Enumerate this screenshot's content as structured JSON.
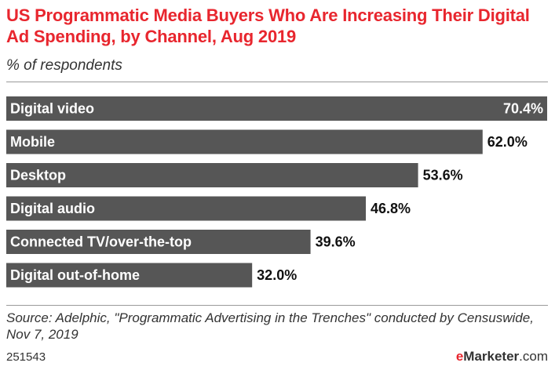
{
  "header": {
    "title": "US Programmatic Media Buyers Who Are Increasing Their Digital Ad Spending, by Channel, Aug 2019",
    "subtitle": "% of respondents"
  },
  "chart_data": {
    "type": "bar",
    "orientation": "horizontal",
    "categories": [
      "Digital video",
      "Mobile",
      "Desktop",
      "Digital audio",
      "Connected TV/over-the-top",
      "Digital out-of-home"
    ],
    "values": [
      70.4,
      62.0,
      53.6,
      46.8,
      39.6,
      32.0
    ],
    "value_labels": [
      "70.4%",
      "62.0%",
      "53.6%",
      "46.8%",
      "39.6%",
      "32.0%"
    ],
    "xlim": [
      0,
      70.4
    ],
    "grid": false,
    "bar_color": "#565656",
    "label_color": "#ffffff"
  },
  "footer": {
    "source": "Source: Adelphic, \"Programmatic Advertising in the Trenches\" conducted by Censuswide, Nov 7, 2019",
    "chart_id": "251543",
    "logo_e": "e",
    "logo_marketer": "Marketer",
    "logo_domain": ".com"
  },
  "colors": {
    "title": "#e8262e",
    "text": "#333333",
    "rule": "#9a9a9a"
  }
}
